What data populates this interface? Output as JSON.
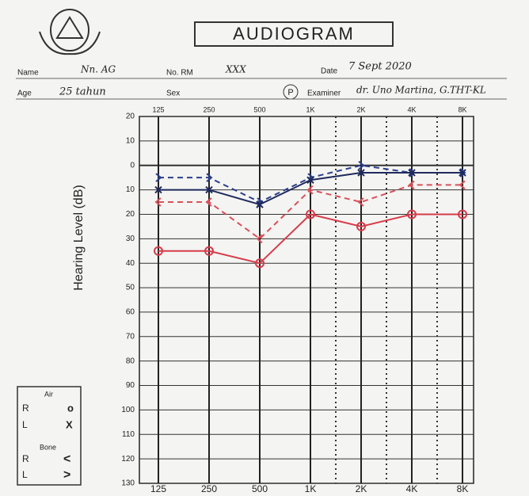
{
  "header": {
    "title": "AUDIOGRAM",
    "name_label": "Name",
    "name": "Nn. AG",
    "rm_label": "No. RM",
    "rm": "XXX",
    "date_label": "Date",
    "date": "7 Sept 2020",
    "age_label": "Age",
    "age": "25 tahun",
    "sex_label": "Sex",
    "sex": "P",
    "examiner_label": "Examiner",
    "examiner": "dr. Uno Martina, G.THT-KL"
  },
  "legend": {
    "air": "Air",
    "air_right": "R",
    "air_right_symbol": "o",
    "air_left": "L",
    "air_left_symbol": "X",
    "bone": "Bone",
    "bone_right": "R",
    "bone_right_symbol": "<",
    "bone_left": "L",
    "bone_left_symbol": ">"
  },
  "chart_data": {
    "type": "line",
    "y_label": "Hearing Level (dB)",
    "categories": [
      "125",
      "250",
      "500",
      "1K",
      "2K",
      "4K",
      "8K"
    ],
    "top_labels": [
      "125",
      "250",
      "500",
      "1K",
      "2K",
      "4K",
      "8K"
    ],
    "ylim": [
      -20,
      130
    ],
    "y_inverted": true,
    "yticks": [
      {
        "value": -20,
        "label": "20"
      },
      {
        "value": -10,
        "label": "10"
      },
      0,
      10,
      20,
      30,
      40,
      50,
      60,
      70,
      80,
      90,
      100,
      110,
      120,
      130
    ],
    "grid": true,
    "series": [
      {
        "color": "#2b3f8c",
        "dash": true,
        "marker": ">",
        "values": [
          5,
          5,
          15,
          5,
          0,
          3,
          3
        ]
      },
      {
        "color": "#1f2a5e",
        "dash": false,
        "marker": "x",
        "values": [
          10,
          10,
          16,
          6,
          3,
          3,
          3
        ]
      },
      {
        "color": "#d9505a",
        "dash": true,
        "marker": "<",
        "values": [
          15,
          15,
          30,
          10,
          15,
          8,
          8
        ]
      },
      {
        "color": "#d63c4a",
        "dash": false,
        "marker": "o",
        "values": [
          35,
          35,
          40,
          20,
          25,
          20,
          20
        ]
      }
    ]
  }
}
